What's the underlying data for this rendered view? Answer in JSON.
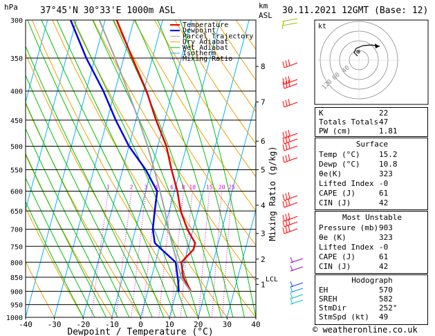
{
  "header": {
    "location": "37°45'N 30°33'E 1000m ASL",
    "datetime": "30.11.2021 12GMT (Base: 12)",
    "hpa_unit": "hPa",
    "km_unit": "km",
    "asl_unit": "ASL"
  },
  "colors": {
    "temperature": "#e00000",
    "dewpoint": "#0000e0",
    "parcel": "#a0a0a0",
    "dry_adiabat": "#f0a000",
    "wet_adiabat": "#00c000",
    "isotherm": "#00b0ff",
    "mixing_ratio": "#e000e0",
    "wind": "#ff0000"
  },
  "chart_data": {
    "type": "line",
    "xlabel": "Dewpoint / Temperature (°C)",
    "ylabel": "Mixing Ratio (g/kg)",
    "x_ticks": [
      -40,
      -30,
      -20,
      -10,
      0,
      10,
      20,
      30,
      40
    ],
    "xlim": [
      -40,
      40
    ],
    "pressure_ticks": [
      300,
      350,
      400,
      450,
      500,
      550,
      600,
      650,
      700,
      750,
      800,
      850,
      900,
      950,
      1000
    ],
    "ylim": [
      1000,
      300
    ],
    "y_scale": "log",
    "km_ticks": [
      {
        "p": 875,
        "label": "1"
      },
      {
        "p": 790,
        "label": "2"
      },
      {
        "p": 712,
        "label": "3"
      },
      {
        "p": 635,
        "label": "4"
      },
      {
        "p": 550,
        "label": "5"
      },
      {
        "p": 490,
        "label": "6"
      },
      {
        "p": 418,
        "label": "7"
      },
      {
        "p": 362,
        "label": "8"
      }
    ],
    "lcl": {
      "p": 855,
      "label": "LCL"
    },
    "mixing_ratio_labels": [
      "1",
      "2",
      "3",
      "4",
      "6",
      "8",
      "10",
      "15",
      "20",
      "25"
    ],
    "legend": [
      "Temperature",
      "Dewpoint",
      "Parcel Trajectory",
      "Dry Adiabat",
      "Wet Adiabat",
      "Isotherm",
      "Mixing Ratio"
    ],
    "legend_placement": "top-right",
    "series": [
      {
        "name": "Temperature",
        "points": [
          [
            903,
            15.2
          ],
          [
            880,
            13.5
          ],
          [
            850,
            11
          ],
          [
            800,
            9
          ],
          [
            760,
            12
          ],
          [
            740,
            12
          ],
          [
            720,
            10
          ],
          [
            700,
            8
          ],
          [
            650,
            4
          ],
          [
            600,
            1
          ],
          [
            550,
            -3
          ],
          [
            500,
            -7
          ],
          [
            450,
            -13
          ],
          [
            400,
            -19
          ],
          [
            350,
            -27
          ],
          [
            300,
            -36
          ]
        ]
      },
      {
        "name": "Dewpoint",
        "points": [
          [
            903,
            10.8
          ],
          [
            890,
            10.5
          ],
          [
            860,
            9.5
          ],
          [
            800,
            7
          ],
          [
            760,
            1
          ],
          [
            740,
            -2
          ],
          [
            700,
            -4
          ],
          [
            650,
            -5
          ],
          [
            600,
            -6
          ],
          [
            550,
            -12
          ],
          [
            500,
            -20
          ],
          [
            450,
            -27
          ],
          [
            400,
            -34
          ],
          [
            350,
            -43
          ],
          [
            300,
            -52
          ]
        ]
      },
      {
        "name": "Parcel Trajectory",
        "points": [
          [
            903,
            15.2
          ],
          [
            855,
            10.6
          ],
          [
            800,
            7.5
          ],
          [
            750,
            4.5
          ],
          [
            700,
            1.5
          ],
          [
            650,
            -1.5
          ],
          [
            600,
            -5
          ],
          [
            550,
            -9
          ],
          [
            500,
            -13.5
          ],
          [
            450,
            -19
          ],
          [
            400,
            -25.5
          ],
          [
            350,
            -33
          ],
          [
            300,
            -42
          ]
        ]
      }
    ]
  },
  "hodograph": {
    "unit_label": "kt",
    "ring_labels": [
      "40",
      "60",
      "120"
    ]
  },
  "indices": [
    {
      "label": "K",
      "value": "22"
    },
    {
      "label": "Totals Totals",
      "value": "47"
    },
    {
      "label": "PW (cm)",
      "value": "1.81"
    }
  ],
  "surface": {
    "title": "Surface",
    "rows": [
      {
        "label": "Temp (°C)",
        "value": "15.2"
      },
      {
        "label": "Dewp (°C)",
        "value": "10.8"
      },
      {
        "label": "θe(K)",
        "value": "323"
      },
      {
        "label": "Lifted Index",
        "value": "-0"
      },
      {
        "label": "CAPE (J)",
        "value": "61"
      },
      {
        "label": "CIN (J)",
        "value": "42"
      }
    ]
  },
  "most_unstable": {
    "title": "Most Unstable",
    "rows": [
      {
        "label": "Pressure (mb)",
        "value": "903"
      },
      {
        "label": "θe (K)",
        "value": "323"
      },
      {
        "label": "Lifted Index",
        "value": "-0"
      },
      {
        "label": "CAPE (J)",
        "value": "61"
      },
      {
        "label": "CIN (J)",
        "value": "42"
      }
    ]
  },
  "hodograph_indices": {
    "title": "Hodograph",
    "rows": [
      {
        "label": "EH",
        "value": "570"
      },
      {
        "label": "SREH",
        "value": "582"
      },
      {
        "label": "StmDir",
        "value": "252°"
      },
      {
        "label": "StmSpd (kt)",
        "value": "49"
      }
    ]
  },
  "footer": {
    "credit": "© weatheronline.co.uk"
  }
}
